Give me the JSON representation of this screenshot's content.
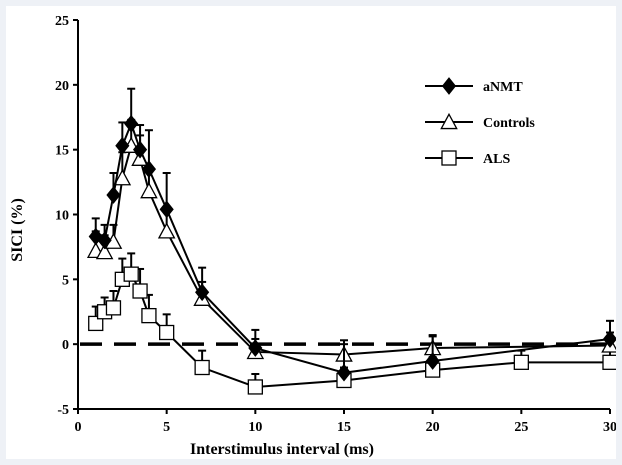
{
  "chart_data": {
    "type": "line",
    "title": "",
    "xlabel": "Interstimulus interval (ms)",
    "ylabel": "SICI (%)",
    "xlim": [
      0,
      30
    ],
    "ylim": [
      -5,
      25
    ],
    "xticks": [
      0,
      5,
      10,
      15,
      20,
      25,
      30
    ],
    "yticks": [
      -5,
      0,
      5,
      10,
      15,
      20,
      25
    ],
    "grid": false,
    "legend": "upper-right",
    "reference_line": {
      "y": 0,
      "style": "dashed"
    },
    "series": [
      {
        "name": "aNMT",
        "marker": "diamond-filled",
        "color": "#000000",
        "x": [
          1,
          1.5,
          2,
          2.5,
          3,
          3.5,
          4,
          5,
          7,
          10,
          15,
          20,
          30
        ],
        "y": [
          8.3,
          8.0,
          11.5,
          15.3,
          17.0,
          15.0,
          13.5,
          10.4,
          4.0,
          -0.3,
          -2.2,
          -1.3,
          0.4
        ],
        "error": [
          1.4,
          1.2,
          1.7,
          1.8,
          2.7,
          1.9,
          3.0,
          2.8,
          1.9,
          1.4,
          2.2,
          2.0,
          1.4
        ]
      },
      {
        "name": "Controls",
        "marker": "triangle-open",
        "color": "#000000",
        "x": [
          1,
          1.5,
          2,
          2.5,
          3,
          3.5,
          4,
          5,
          7,
          10,
          15,
          20,
          30
        ],
        "y": [
          7.2,
          7.1,
          7.9,
          12.8,
          15.3,
          14.3,
          11.8,
          8.7,
          3.5,
          -0.6,
          -0.8,
          -0.3,
          -0.1
        ],
        "error": [
          1.5,
          1.3,
          1.3,
          2.0,
          2.0,
          1.8,
          1.8,
          1.7,
          1.3,
          1.0,
          1.1,
          0.9,
          1.0
        ]
      },
      {
        "name": "ALS",
        "marker": "square-open",
        "color": "#000000",
        "x": [
          1,
          1.5,
          2,
          2.5,
          3,
          3.5,
          4,
          5,
          7,
          10,
          15,
          20,
          25,
          30
        ],
        "y": [
          1.6,
          2.5,
          2.8,
          5.0,
          5.4,
          4.1,
          2.2,
          0.9,
          -1.8,
          -3.3,
          -2.8,
          -2.0,
          -1.4,
          -1.4
        ],
        "error": [
          1.3,
          1.1,
          1.3,
          1.6,
          1.6,
          1.7,
          1.6,
          1.4,
          1.3,
          1.0,
          1.0,
          1.0,
          0.9,
          1.0
        ]
      }
    ]
  }
}
